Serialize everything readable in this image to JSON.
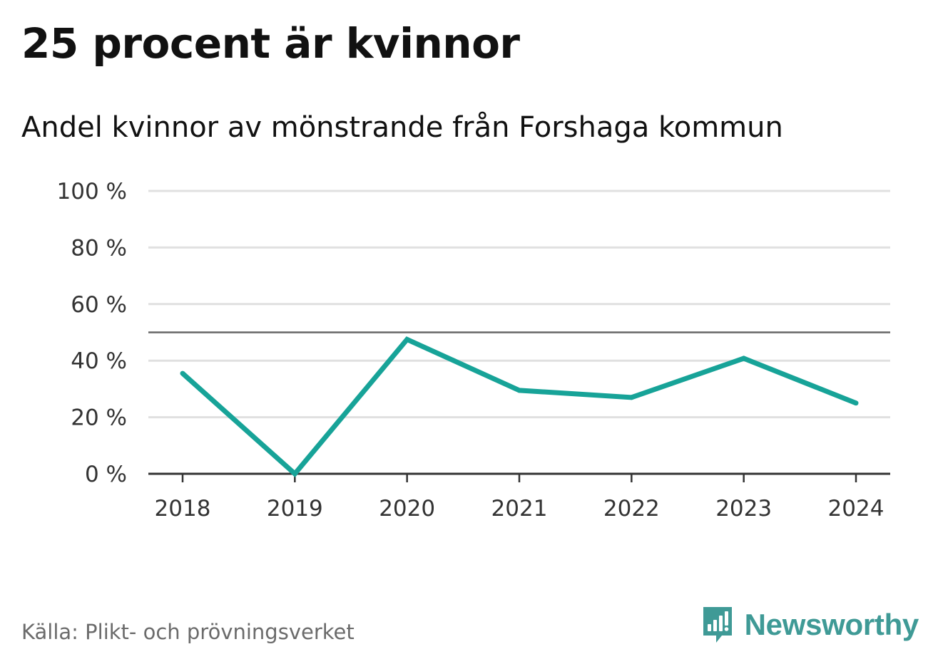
{
  "title": "25 procent är kvinnor",
  "subtitle": "Andel kvinnor av mönstrande från Forshaga kommun",
  "source": "Källa: Plikt- och prövningsverket",
  "brand": {
    "name": "Newsworthy",
    "icon": "newsworthy-logo-icon",
    "color": "#3f9a96"
  },
  "colors": {
    "line": "#17a398",
    "grid": "#e0e0e0",
    "reference_line": "#666666",
    "axis": "#333333"
  },
  "chart_data": {
    "type": "line",
    "title": "25 procent är kvinnor",
    "subtitle": "Andel kvinnor av mönstrande från Forshaga kommun",
    "xlabel": "",
    "ylabel": "",
    "categories": [
      "2018",
      "2019",
      "2020",
      "2021",
      "2022",
      "2023",
      "2024"
    ],
    "series": [
      {
        "name": "Andel kvinnor",
        "values": [
          35.5,
          0,
          47.5,
          29.5,
          27,
          40.8,
          25
        ]
      }
    ],
    "ylim": [
      0,
      100
    ],
    "yticks": [
      0,
      20,
      40,
      60,
      80,
      100
    ],
    "ytick_labels": [
      "0 %",
      "20 %",
      "40 %",
      "60 %",
      "80 %",
      "100 %"
    ],
    "reference_line": 50,
    "grid": true,
    "legend": "none"
  }
}
